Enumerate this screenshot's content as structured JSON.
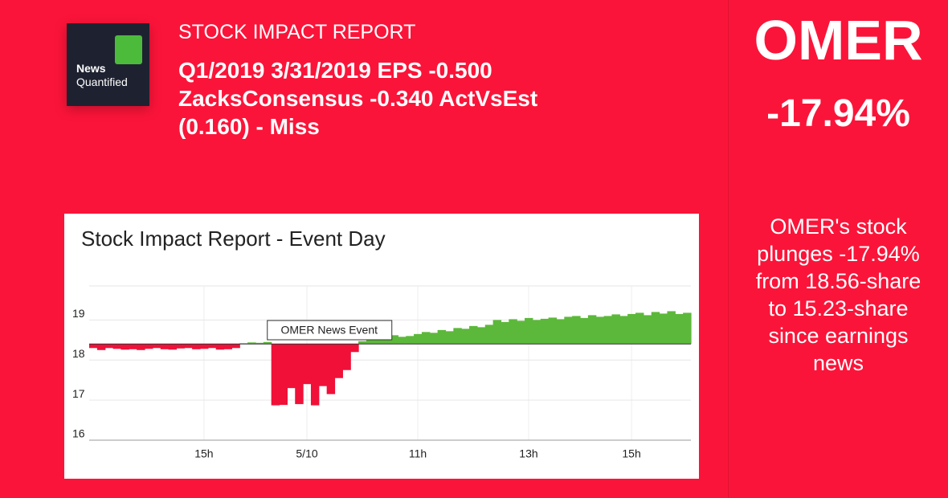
{
  "header": {
    "logo": [
      "News",
      "Quantified"
    ],
    "kicker": "STOCK IMPACT REPORT",
    "headline": [
      "Q1/2019 3/31/2019 EPS -0.500",
      "ZacksConsensus -0.340 ActVsEst",
      "(0.160) - Miss"
    ]
  },
  "side": {
    "ticker": "OMER",
    "change": "-17.94%",
    "summary": [
      "OMER's stock",
      "plunges -17.94%",
      "from 18.56-share",
      "to 15.23-share",
      "since earnings",
      "news"
    ]
  },
  "chart_data": {
    "type": "area",
    "title": "Stock Impact Report - Event Day",
    "annotation": "OMER News Event",
    "categories": [
      null,
      null,
      null,
      null,
      null,
      null,
      null,
      null,
      null,
      null,
      null,
      null,
      null,
      null,
      "15h",
      null,
      null,
      null,
      null,
      null,
      null,
      null,
      null,
      null,
      null,
      null,
      null,
      "5/10",
      null,
      null,
      null,
      null,
      null,
      null,
      null,
      null,
      null,
      null,
      null,
      null,
      null,
      "11h",
      null,
      null,
      null,
      null,
      null,
      null,
      null,
      null,
      null,
      null,
      null,
      null,
      null,
      "13h",
      null,
      null,
      null,
      null,
      null,
      null,
      null,
      null,
      null,
      null,
      null,
      null,
      "15h",
      null,
      null,
      null,
      null,
      null,
      null,
      null
    ],
    "values": [
      18.3,
      18.25,
      18.3,
      18.28,
      18.26,
      18.27,
      18.25,
      18.28,
      18.3,
      18.27,
      18.26,
      18.29,
      18.3,
      18.27,
      18.28,
      18.3,
      18.26,
      18.27,
      18.3,
      18.42,
      18.44,
      18.43,
      18.45,
      16.87,
      16.88,
      17.3,
      16.9,
      17.4,
      16.87,
      17.35,
      17.15,
      17.55,
      17.75,
      18.2,
      18.47,
      18.58,
      18.6,
      18.57,
      18.62,
      18.58,
      18.6,
      18.65,
      18.7,
      18.68,
      18.75,
      18.72,
      18.8,
      18.78,
      18.85,
      18.82,
      18.88,
      19.0,
      18.95,
      19.02,
      18.98,
      19.05,
      19.0,
      19.03,
      19.06,
      19.02,
      19.08,
      19.1,
      19.05,
      19.12,
      19.08,
      19.1,
      19.14,
      19.1,
      19.15,
      19.18,
      19.12,
      19.2,
      19.16,
      19.22,
      19.15,
      19.18
    ],
    "baseline": 18.4,
    "ylim": [
      16,
      19.85
    ],
    "yticks": [
      16,
      17,
      18,
      19
    ],
    "grid": true,
    "colors": {
      "above": "#5cb83a",
      "below": "#f01038"
    }
  }
}
